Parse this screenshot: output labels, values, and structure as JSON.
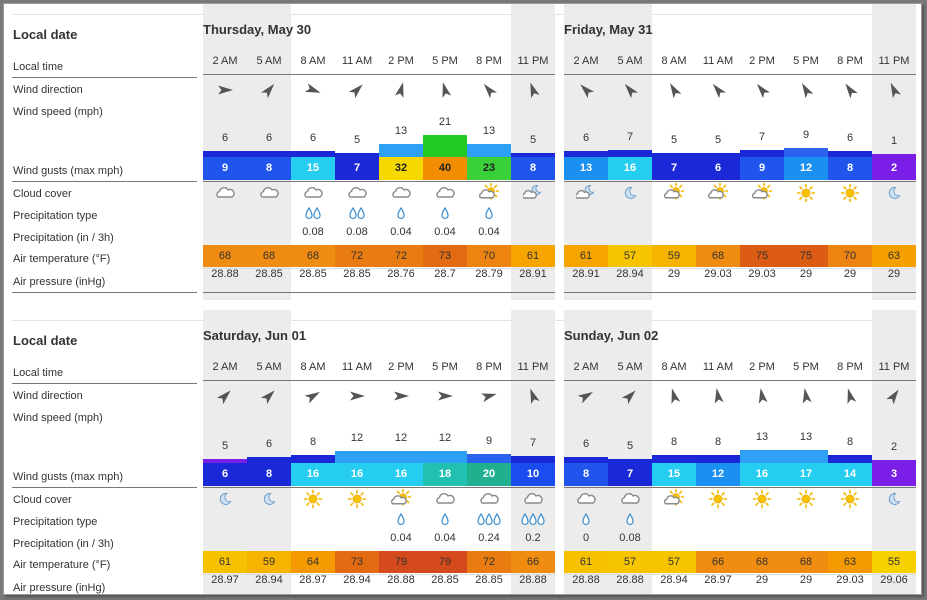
{
  "labels": {
    "local_date": "Local date",
    "local_time": "Local time",
    "wind_direction": "Wind direction",
    "wind_speed": "Wind speed",
    "wind_speed_unit": "(mph)",
    "wind_gusts": "Wind gusts",
    "wind_gusts_unit": "(max mph)",
    "cloud_cover": "Cloud cover",
    "precip_type": "Precipitation type",
    "precip": "Precipitation",
    "precip_unit": "(in / 3h)",
    "air_temp": "Air temperature",
    "air_temp_unit": "(°F)",
    "air_pressure": "Air pressure",
    "air_pressure_unit": "(inHg)"
  },
  "hours": [
    "2 AM",
    "5 AM",
    "8 AM",
    "11 AM",
    "2 PM",
    "5 PM",
    "8 PM",
    "11 PM"
  ],
  "days": [
    {
      "title": "Thursday, May 30",
      "wind_dir_deg": [
        90,
        40,
        110,
        45,
        15,
        345,
        320,
        340
      ],
      "wind_speed": [
        "6",
        "6",
        "6",
        "5",
        "13",
        "21",
        "13",
        "5"
      ],
      "wind_gust": [
        "9",
        "8",
        "15",
        "7",
        "32",
        "40",
        "23",
        "8"
      ],
      "gust_color": [
        "#1f55ec",
        "#1f55ec",
        "#25cdf0",
        "#1a28d8",
        "#f5d800",
        "#f28c00",
        "#3ad03a",
        "#1f55ec"
      ],
      "speed_color": [
        "#1a28d8",
        "#1a28d8",
        "#1a28d8",
        "#1a28d8",
        "#2ea0f5",
        "#22c922",
        "#2ea0f5",
        "#1a28d8"
      ],
      "cloud": [
        "cloudy",
        "cloudy",
        "cloudy",
        "cloudy",
        "cloudy",
        "cloudy",
        "sun-cloud",
        "moon-cloud"
      ],
      "precip_drops": [
        0,
        0,
        2,
        2,
        1,
        1,
        1,
        0
      ],
      "precip": [
        "",
        "",
        "0.08",
        "0.08",
        "0.04",
        "0.04",
        "0.04",
        ""
      ],
      "temp": [
        "68",
        "68",
        "68",
        "72",
        "72",
        "73",
        "70",
        "61"
      ],
      "temp_color": [
        "#f08c10",
        "#f08c10",
        "#f08c10",
        "#e97c10",
        "#e97c10",
        "#e26b12",
        "#ed8412",
        "#f6a400"
      ],
      "pressure": [
        "28.88",
        "28.85",
        "28.85",
        "28.85",
        "28.76",
        "28.7",
        "28.79",
        "28.91"
      ]
    },
    {
      "title": "Friday, May 31",
      "wind_dir_deg": [
        315,
        320,
        330,
        320,
        320,
        330,
        325,
        335
      ],
      "wind_speed": [
        "6",
        "7",
        "5",
        "5",
        "7",
        "9",
        "6",
        "1"
      ],
      "wind_gust": [
        "13",
        "16",
        "7",
        "6",
        "9",
        "12",
        "8",
        "2"
      ],
      "gust_color": [
        "#1a90f0",
        "#25cdf0",
        "#1a28d8",
        "#1a28d8",
        "#1f55ec",
        "#1a90f0",
        "#1f55ec",
        "#7a1ee8"
      ],
      "speed_color": [
        "#1a28d8",
        "#1a28d8",
        "#1a28d8",
        "#1a28d8",
        "#1a28d8",
        "#2a64ee",
        "#1a28d8",
        "#7a1ee8"
      ],
      "cloud": [
        "moon-cloud",
        "moon",
        "sun-cloud",
        "sun-cloud",
        "sun-cloud",
        "sun",
        "sun",
        "moon"
      ],
      "precip_drops": [
        0,
        0,
        0,
        0,
        0,
        0,
        0,
        0
      ],
      "precip": [
        "",
        "",
        "",
        "",
        "",
        "",
        "",
        ""
      ],
      "temp": [
        "61",
        "57",
        "59",
        "68",
        "75",
        "75",
        "70",
        "63"
      ],
      "temp_color": [
        "#f6a400",
        "#f7c400",
        "#f6b400",
        "#f08c10",
        "#dc5c14",
        "#dc5c14",
        "#ed8412",
        "#f5a000"
      ],
      "pressure": [
        "28.91",
        "28.94",
        "29",
        "29.03",
        "29.03",
        "29",
        "29",
        "29"
      ]
    },
    {
      "title": "Saturday, Jun 01",
      "wind_dir_deg": [
        45,
        45,
        60,
        90,
        90,
        90,
        75,
        340
      ],
      "wind_speed": [
        "5",
        "6",
        "8",
        "12",
        "12",
        "12",
        "9",
        "7"
      ],
      "wind_gust": [
        "6",
        "8",
        "16",
        "16",
        "16",
        "18",
        "20",
        "10"
      ],
      "gust_color": [
        "#1a28d8",
        "#1a28d8",
        "#25cdf0",
        "#25cdf0",
        "#25cdf0",
        "#22c0b0",
        "#20b090",
        "#1a4cf0"
      ],
      "speed_color": [
        "#7a1ee8",
        "#1a28d8",
        "#1a28d8",
        "#2ea0f5",
        "#2ea0f5",
        "#2ea0f5",
        "#2a64ee",
        "#1a28d8"
      ],
      "cloud": [
        "moon",
        "moon",
        "sun",
        "sun",
        "sun-cloud",
        "cloudy",
        "cloudy",
        "cloudy"
      ],
      "precip_drops": [
        0,
        0,
        0,
        0,
        1,
        1,
        3,
        3
      ],
      "precip": [
        "",
        "",
        "",
        "",
        "0.04",
        "0.04",
        "0.24",
        "0.2"
      ],
      "temp": [
        "61",
        "59",
        "64",
        "73",
        "79",
        "79",
        "72",
        "66"
      ],
      "temp_color": [
        "#f6c200",
        "#f6b400",
        "#f49a00",
        "#e26b12",
        "#d44a1c",
        "#d44a1c",
        "#e97c10",
        "#f08c10"
      ],
      "pressure": [
        "28.97",
        "28.94",
        "28.97",
        "28.94",
        "28.88",
        "28.85",
        "28.85",
        "28.88"
      ]
    },
    {
      "title": "Sunday, Jun 02",
      "wind_dir_deg": [
        60,
        45,
        345,
        350,
        350,
        350,
        345,
        35
      ],
      "wind_speed": [
        "6",
        "5",
        "8",
        "8",
        "13",
        "13",
        "8",
        "2"
      ],
      "wind_gust": [
        "8",
        "7",
        "15",
        "12",
        "16",
        "17",
        "14",
        "3"
      ],
      "gust_color": [
        "#1f55ec",
        "#1a28d8",
        "#25cdf0",
        "#1a90f0",
        "#25cdf0",
        "#25cdf0",
        "#25cdf0",
        "#7a1ee8"
      ],
      "speed_color": [
        "#1a28d8",
        "#1a28d8",
        "#1a28d8",
        "#1a28d8",
        "#2ea0f5",
        "#2ea0f5",
        "#1a28d8",
        "#7a1ee8"
      ],
      "cloud": [
        "cloudy",
        "cloudy",
        "sun-cloud",
        "sun",
        "sun",
        "sun",
        "sun",
        "moon"
      ],
      "precip_drops": [
        1,
        1,
        0,
        0,
        0,
        0,
        0,
        0
      ],
      "precip": [
        "0",
        "0.08",
        "",
        "",
        "",
        "",
        "",
        ""
      ],
      "temp": [
        "61",
        "57",
        "57",
        "66",
        "68",
        "68",
        "63",
        "55"
      ],
      "temp_color": [
        "#f6c200",
        "#f7c400",
        "#f7c400",
        "#f08c10",
        "#f08c10",
        "#f08c10",
        "#f49a00",
        "#f7d000"
      ],
      "pressure": [
        "28.88",
        "28.88",
        "28.94",
        "28.97",
        "29",
        "29",
        "29.03",
        "29.06"
      ]
    }
  ]
}
